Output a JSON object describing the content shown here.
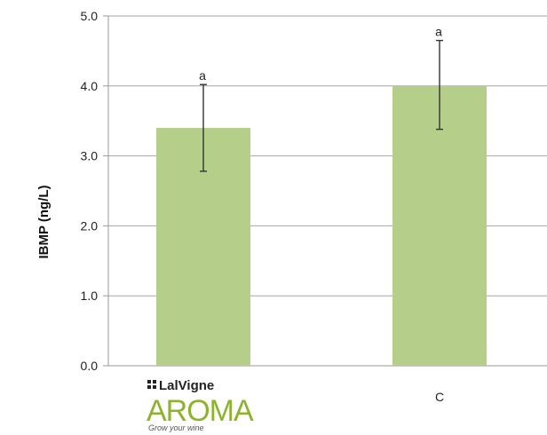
{
  "chart_data": {
    "type": "bar",
    "ylabel": "IBMP (ng/L)",
    "ylim": [
      0,
      5
    ],
    "y_ticks": [
      "0.0",
      "1.0",
      "2.0",
      "3.0",
      "4.0",
      "5.0"
    ],
    "categories": [
      "LalVigne AROMA",
      "C"
    ],
    "values": [
      3.4,
      4.0
    ],
    "error_low": [
      2.78,
      3.38
    ],
    "error_high": [
      4.02,
      4.65
    ],
    "significance_letters": [
      "a",
      "a"
    ],
    "bar_color": "#b5cf8a",
    "gridlines": true
  },
  "logo": {
    "brand_top": "LalVigne",
    "brand_main": "AROMA",
    "tagline": "Grow your wine",
    "brand_color": "#8db32e"
  },
  "second_category_label": "C"
}
